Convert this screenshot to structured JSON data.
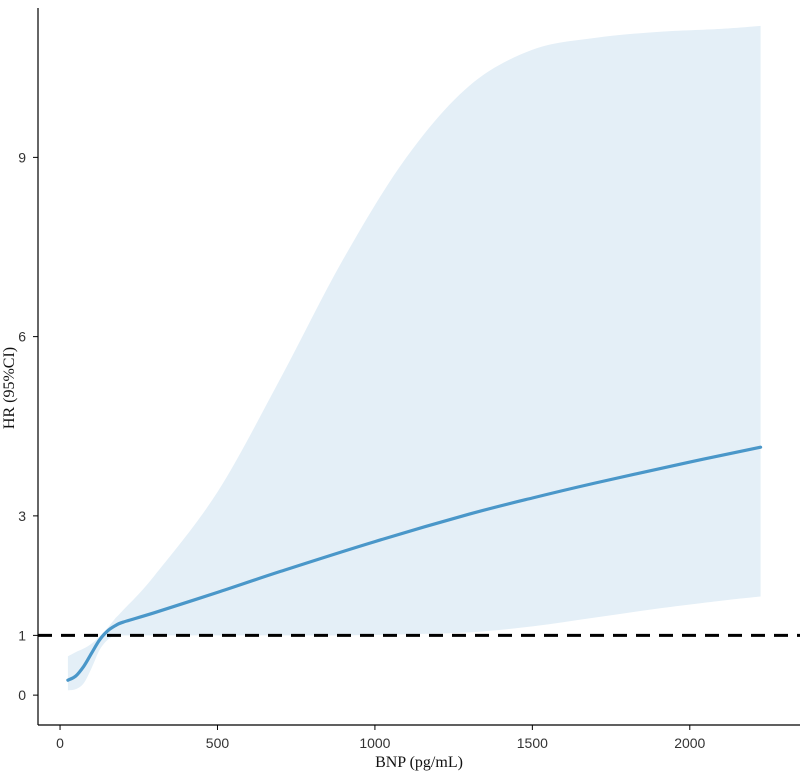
{
  "chart_data": {
    "type": "line",
    "title": "",
    "xlabel": "BNP (pg/mL)",
    "ylabel": "HR (95%CI)",
    "xlim": [
      -70,
      2350
    ],
    "ylim": [
      -0.5,
      11.5
    ],
    "x_ticks": [
      0,
      500,
      1000,
      1500,
      2000
    ],
    "y_ticks": [
      0,
      1,
      3,
      6,
      9
    ],
    "reference_line": {
      "y": 1,
      "style": "dashed",
      "color": "#000000"
    },
    "grid": false,
    "legend": "none",
    "colors": {
      "line": "#4a97c9",
      "ci_band": "#e4eff7"
    },
    "series": [
      {
        "role": "estimate",
        "x": [
          25,
          50,
          75,
          100,
          125,
          150,
          175,
          200,
          300,
          500,
          700,
          1000,
          1300,
          1500,
          1700,
          2000,
          2225
        ],
        "values": [
          0.25,
          0.32,
          0.48,
          0.7,
          0.92,
          1.07,
          1.16,
          1.22,
          1.38,
          1.72,
          2.07,
          2.57,
          3.03,
          3.3,
          3.55,
          3.9,
          4.15
        ]
      }
    ],
    "band": {
      "x": [
        25,
        50,
        75,
        100,
        125,
        150,
        175,
        200,
        300,
        500,
        700,
        900,
        1100,
        1300,
        1500,
        1700,
        1900,
        2100,
        2225
      ],
      "lower": [
        0.08,
        0.1,
        0.2,
        0.45,
        0.75,
        0.92,
        1.0,
        1.0,
        1.0,
        1.0,
        1.0,
        1.0,
        1.02,
        1.05,
        1.15,
        1.3,
        1.45,
        1.58,
        1.65
      ],
      "upper": [
        0.65,
        0.72,
        0.78,
        0.86,
        0.98,
        1.12,
        1.28,
        1.42,
        2.0,
        3.4,
        5.3,
        7.3,
        9.0,
        10.2,
        10.8,
        11.0,
        11.1,
        11.15,
        11.2
      ]
    }
  }
}
